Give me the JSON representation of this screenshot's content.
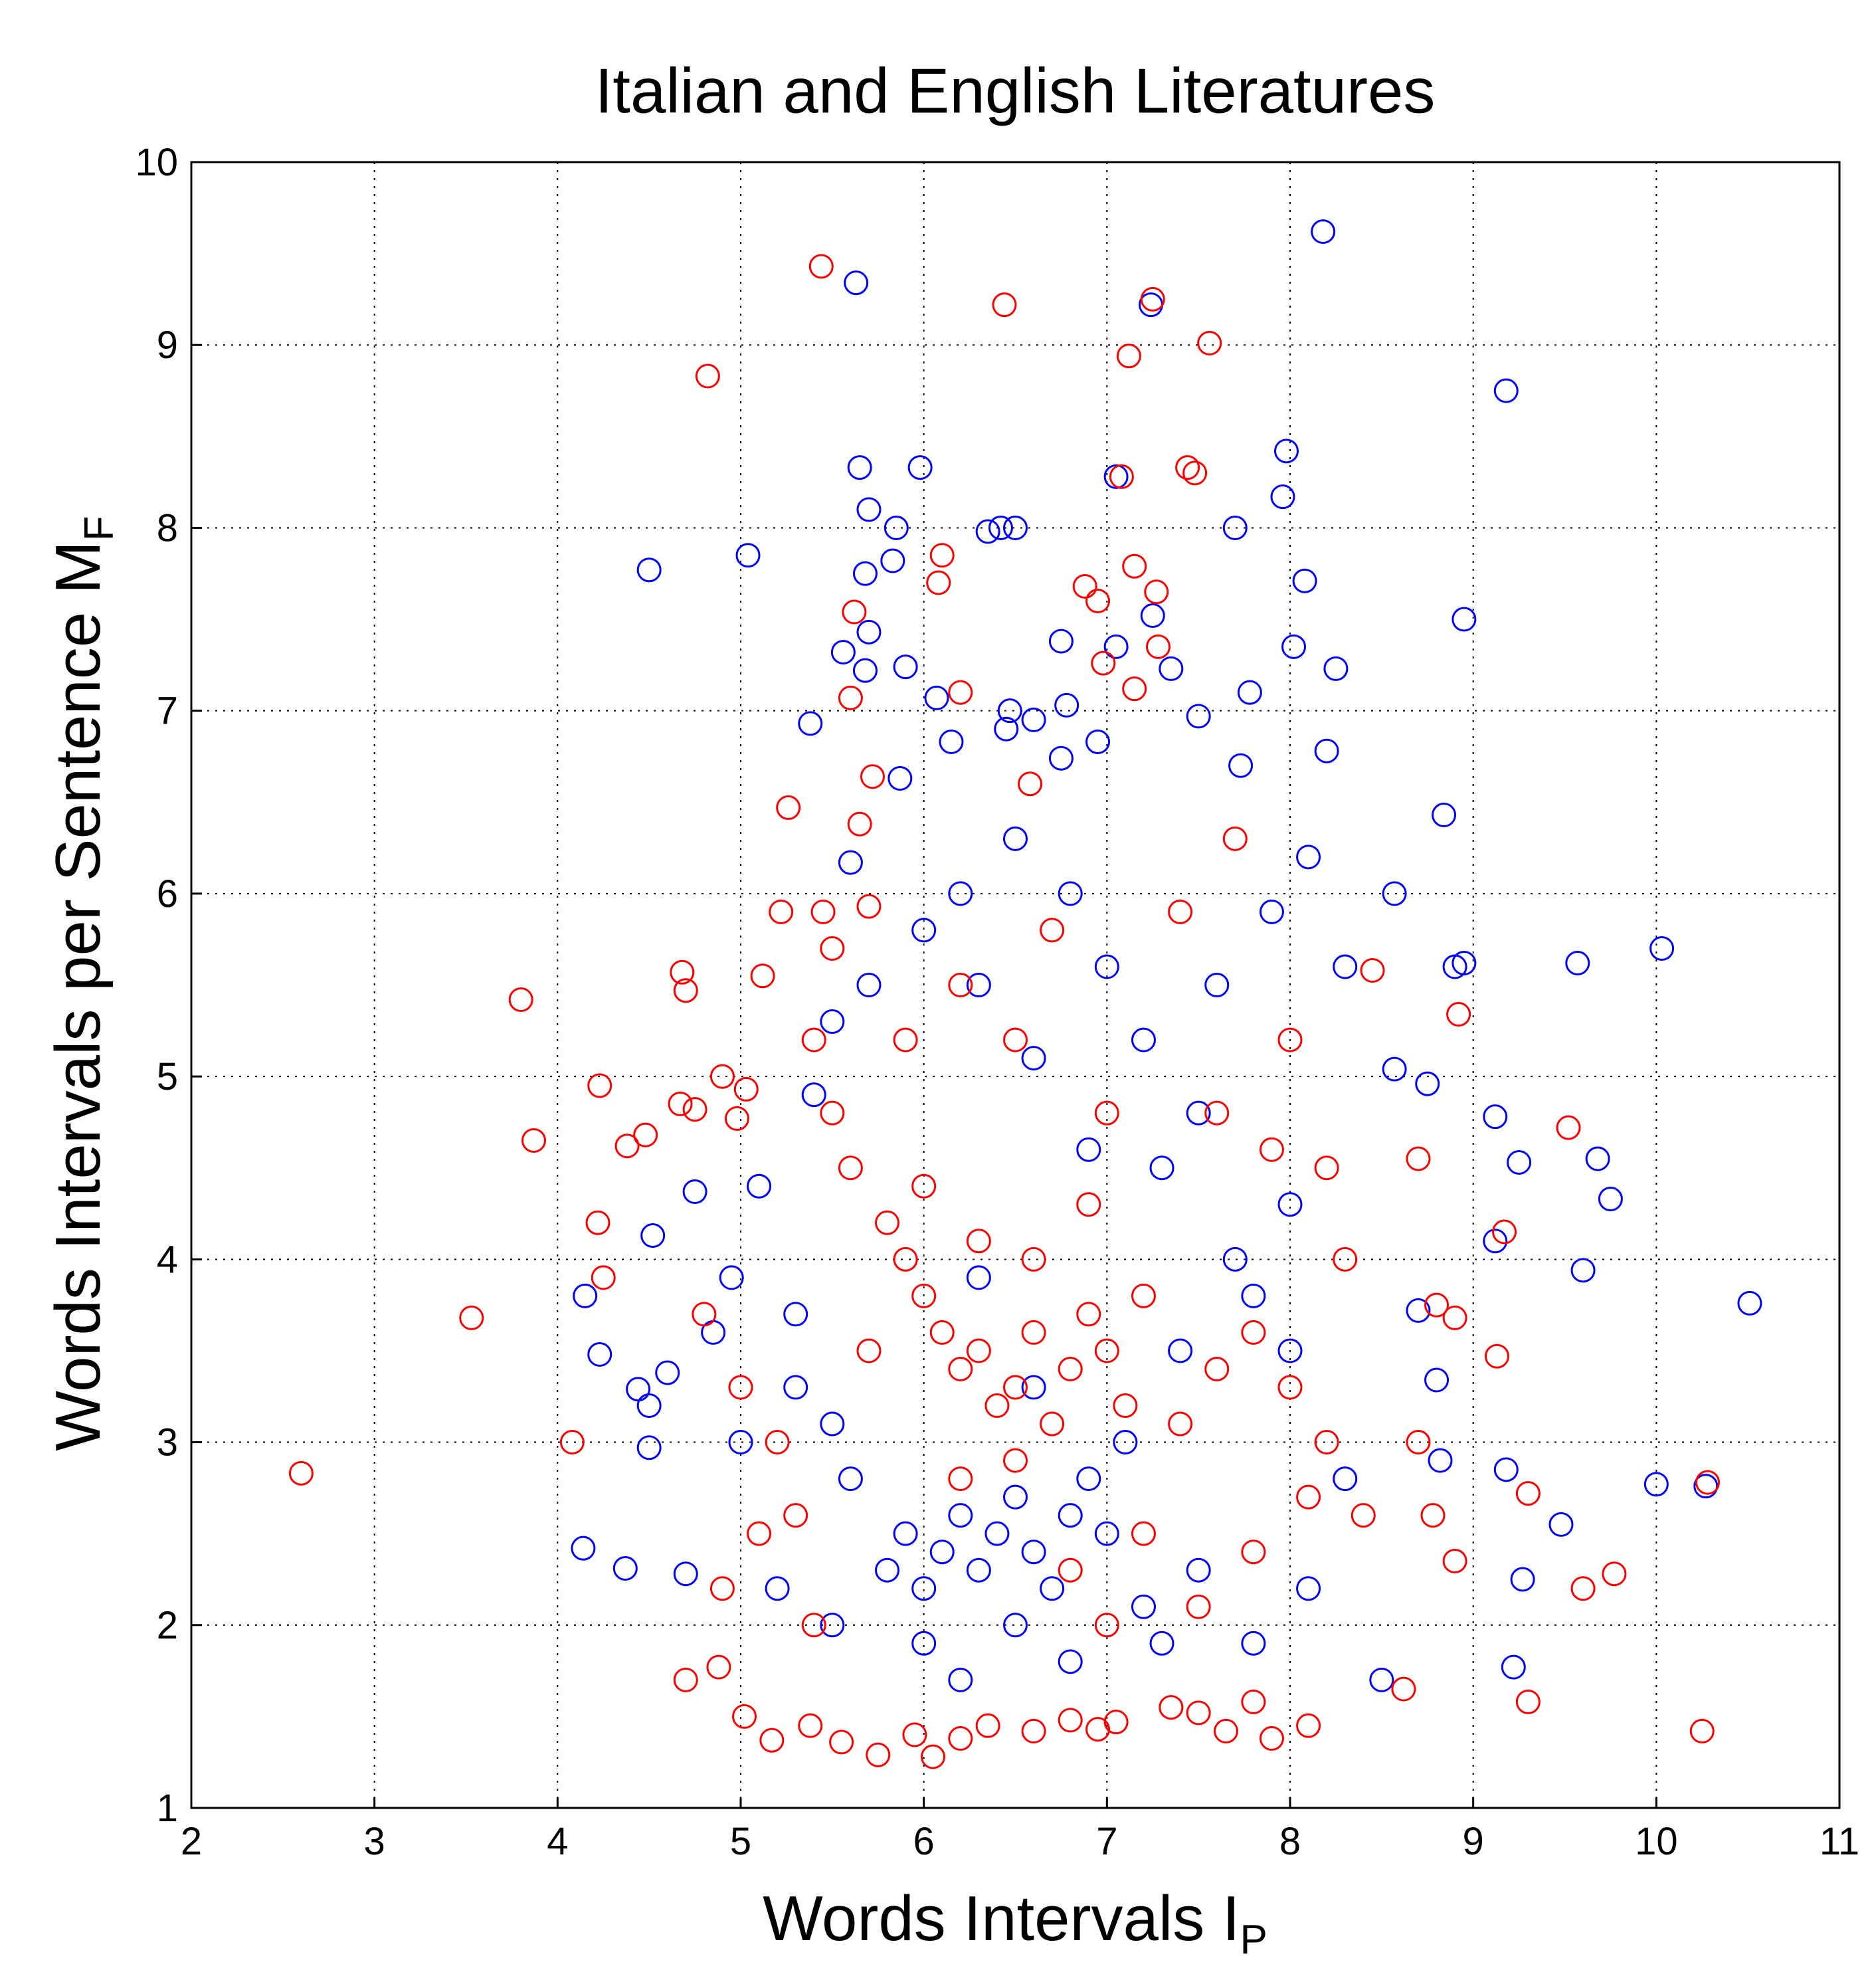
{
  "chart_data": {
    "type": "scatter",
    "title": "Italian and English Literatures",
    "xlabel": {
      "text": "Words Intervals I",
      "subscript": "P"
    },
    "ylabel": {
      "text": "Words Intervals per Sentence M",
      "subscript": "F"
    },
    "xlim": [
      2,
      11
    ],
    "xticks": [
      2,
      3,
      4,
      5,
      6,
      7,
      8,
      9,
      10,
      11
    ],
    "ylim": [
      1,
      10
    ],
    "yticks": [
      1,
      2,
      3,
      4,
      5,
      6,
      7,
      8,
      9,
      10
    ],
    "grid": true,
    "marker": "circle",
    "series": [
      {
        "color": "#0000ff",
        "x": [
          4.5,
          5.04,
          5.38,
          5.63,
          5.65,
          5.98,
          5.7,
          5.68,
          5.85,
          5.83,
          5.7,
          5.68,
          5.56,
          5.9,
          5.87,
          5.6,
          6.07,
          6.15,
          6.35,
          6.42,
          6.5,
          7.05,
          7.24,
          8.18,
          9.18,
          7.98,
          7.96,
          7.7,
          8.08,
          7.78,
          8.02,
          8.25,
          8.95,
          7.5,
          7.73,
          8.2,
          8.84,
          6.95,
          6.75,
          6.78,
          6.6,
          6.75,
          7.05,
          7.25,
          7.35,
          6.45,
          6.47,
          9.57,
          10.03,
          8.9,
          8.95,
          8.57,
          8.57,
          8.75,
          9.12,
          9.25,
          9.68,
          9.75,
          9.6,
          10.51,
          9.12,
          10.0,
          10.27,
          9.18,
          9.27,
          9.48,
          9.22,
          8.5,
          8.8,
          8.82,
          8.7,
          4.14,
          4.37,
          4.15,
          4.23,
          4.44,
          4.5,
          4.52,
          4.5,
          4.6,
          4.75,
          4.7,
          4.85,
          4.95,
          5.1,
          5.3,
          5.4,
          5.8,
          5.9,
          6.0,
          6.1,
          6.2,
          6.3,
          6.4,
          6.5,
          6.6,
          6.7,
          6.8,
          6.9,
          7.0,
          5.6,
          5.5,
          5.3,
          5.0,
          5.2,
          5.5,
          6.0,
          6.5,
          7.2,
          7.5,
          7.8,
          8.1,
          8.3,
          8.0,
          7.7,
          7.5,
          7.2,
          7.0,
          6.8,
          6.5,
          6.2,
          6.0,
          6.3,
          6.6,
          6.9,
          7.3,
          7.6,
          7.9,
          8.1,
          8.3,
          8.0,
          7.8,
          7.4,
          7.1,
          6.6,
          6.3,
          5.7,
          5.5,
          6.8,
          7.3,
          6.2
        ],
        "y": [
          7.77,
          7.85,
          6.93,
          9.34,
          8.33,
          8.33,
          8.1,
          7.75,
          8.0,
          7.82,
          7.43,
          7.22,
          7.32,
          7.24,
          6.63,
          6.17,
          7.07,
          6.83,
          7.98,
          8.0,
          8.0,
          8.28,
          9.22,
          9.62,
          8.75,
          8.42,
          8.17,
          8.0,
          7.71,
          7.1,
          7.35,
          7.23,
          7.5,
          6.97,
          6.7,
          6.78,
          6.43,
          6.83,
          6.74,
          7.03,
          6.95,
          7.38,
          7.35,
          7.52,
          7.23,
          6.9,
          7.0,
          5.62,
          5.7,
          5.6,
          5.62,
          6.0,
          5.04,
          4.96,
          4.78,
          4.53,
          4.55,
          4.33,
          3.94,
          3.76,
          4.1,
          2.77,
          2.76,
          2.85,
          2.25,
          2.55,
          1.77,
          1.7,
          3.34,
          2.9,
          3.72,
          2.42,
          2.31,
          3.8,
          3.48,
          3.29,
          3.2,
          4.13,
          2.97,
          3.38,
          4.37,
          2.28,
          3.6,
          3.9,
          4.4,
          3.7,
          4.9,
          2.3,
          2.5,
          2.2,
          2.4,
          2.6,
          2.3,
          2.5,
          2.7,
          2.4,
          2.2,
          2.6,
          2.8,
          2.5,
          2.8,
          3.1,
          3.3,
          3.0,
          2.2,
          2.0,
          1.9,
          2.0,
          2.1,
          2.3,
          1.9,
          2.2,
          2.8,
          3.5,
          4.0,
          4.8,
          5.2,
          5.6,
          6.0,
          6.3,
          6.0,
          5.8,
          5.5,
          5.1,
          4.6,
          4.5,
          5.5,
          5.9,
          6.2,
          5.6,
          4.3,
          3.8,
          3.5,
          3.0,
          3.3,
          3.9,
          5.5,
          5.3,
          1.8,
          1.9,
          1.7
        ]
      },
      {
        "color": "#ff0000",
        "x": [
          2.6,
          3.53,
          3.8,
          3.87,
          4.08,
          4.23,
          4.22,
          4.25,
          4.38,
          4.48,
          4.68,
          4.7,
          4.67,
          4.75,
          4.82,
          4.9,
          4.98,
          5.03,
          5.26,
          5.22,
          5.12,
          5.44,
          5.45,
          5.5,
          5.65,
          5.62,
          5.6,
          5.72,
          5.7,
          6.1,
          6.08,
          6.2,
          6.44,
          6.58,
          6.88,
          6.95,
          6.98,
          7.08,
          7.12,
          7.15,
          7.25,
          7.27,
          7.15,
          7.44,
          7.48,
          7.56,
          7.28,
          4.7,
          4.88,
          5.02,
          5.17,
          5.38,
          5.55,
          5.75,
          5.95,
          6.05,
          6.2,
          6.35,
          6.6,
          6.8,
          6.95,
          7.05,
          7.35,
          7.5,
          7.65,
          7.8,
          7.9,
          8.1,
          8.62,
          9.3,
          10.25,
          9.6,
          9.77,
          9.3,
          10.28,
          9.52,
          9.17,
          9.13,
          8.9,
          8.92,
          8.9,
          8.78,
          8.8,
          8.7,
          8.45,
          8.7,
          5.8,
          5.9,
          6.0,
          6.1,
          6.2,
          6.3,
          6.4,
          6.5,
          6.6,
          6.7,
          6.8,
          6.9,
          7.0,
          7.1,
          7.2,
          5.7,
          5.6,
          5.5,
          6.0,
          6.3,
          6.6,
          6.9,
          7.2,
          7.4,
          7.6,
          7.8,
          8.0,
          8.2,
          8.4,
          5.3,
          5.1,
          4.9,
          5.4,
          5.2,
          5.0,
          4.8,
          6.2,
          6.5,
          6.8,
          7.0,
          7.5,
          7.8,
          8.1,
          8.3,
          7.9,
          7.6,
          7.0,
          6.5,
          6.2,
          5.9,
          5.4,
          6.7,
          7.4,
          7.7,
          8.2,
          8.0
        ],
        "y": [
          2.83,
          3.68,
          5.42,
          4.65,
          3.0,
          4.95,
          4.2,
          3.9,
          4.62,
          4.68,
          5.57,
          5.47,
          4.85,
          4.82,
          8.83,
          5.0,
          4.77,
          4.93,
          6.47,
          5.9,
          5.55,
          9.43,
          5.9,
          5.7,
          6.38,
          7.54,
          7.07,
          6.64,
          5.93,
          7.85,
          7.7,
          7.1,
          9.22,
          6.6,
          7.68,
          7.6,
          7.26,
          8.28,
          8.94,
          7.79,
          9.25,
          7.65,
          7.12,
          8.33,
          8.3,
          9.01,
          7.35,
          1.7,
          1.77,
          1.5,
          1.37,
          1.45,
          1.36,
          1.29,
          1.4,
          1.28,
          1.38,
          1.45,
          1.42,
          1.48,
          1.43,
          1.47,
          1.55,
          1.52,
          1.42,
          1.58,
          1.38,
          1.45,
          1.65,
          1.58,
          1.42,
          2.2,
          2.28,
          2.72,
          2.78,
          4.72,
          4.15,
          3.47,
          3.68,
          5.34,
          2.35,
          2.6,
          3.75,
          3.0,
          5.58,
          4.55,
          4.2,
          4.0,
          3.8,
          3.6,
          3.4,
          3.5,
          3.2,
          3.3,
          3.6,
          3.1,
          3.4,
          3.7,
          3.5,
          3.2,
          3.8,
          3.5,
          4.5,
          4.8,
          4.4,
          4.1,
          4.0,
          4.3,
          2.5,
          3.1,
          3.4,
          3.6,
          3.3,
          3.0,
          2.6,
          2.6,
          2.5,
          2.2,
          2.0,
          3.0,
          3.3,
          3.7,
          2.8,
          2.9,
          2.3,
          2.0,
          2.1,
          2.4,
          2.7,
          4.0,
          4.6,
          4.8,
          4.8,
          5.2,
          5.5,
          5.2,
          5.2,
          5.8,
          5.9,
          6.3,
          4.5,
          5.2
        ]
      }
    ]
  }
}
